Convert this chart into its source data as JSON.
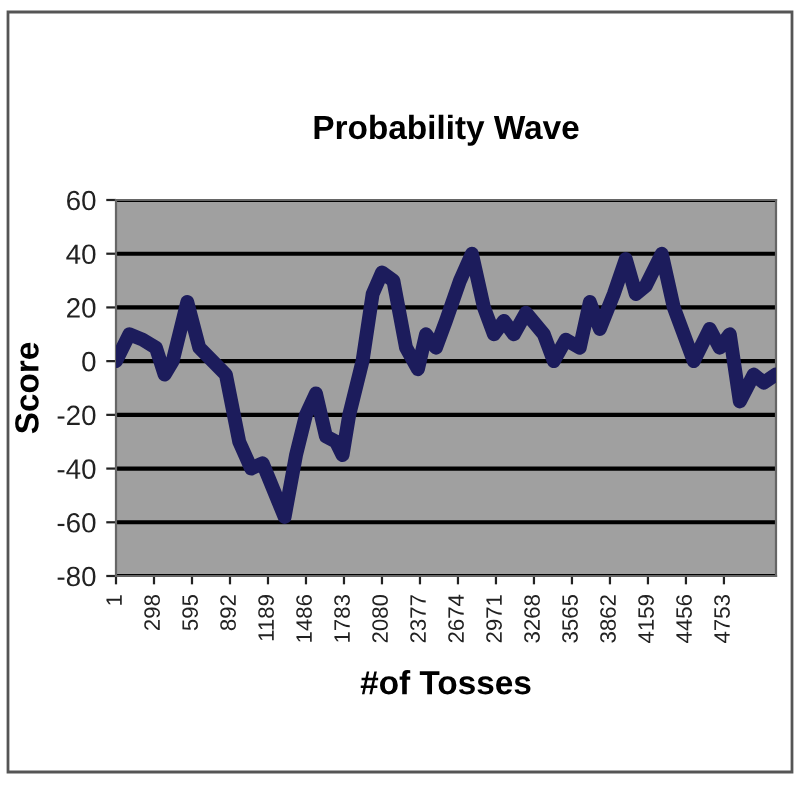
{
  "chart_data": {
    "type": "line",
    "title": "Probability Wave",
    "xlabel": "#of Tosses",
    "ylabel": "Score",
    "x": [
      1,
      105,
      209,
      313,
      381,
      444,
      558,
      652,
      756,
      860,
      964,
      1058,
      1147,
      1319,
      1408,
      1486,
      1564,
      1642,
      1720,
      1772,
      1824,
      1928,
      2007,
      2080,
      2169,
      2268,
      2361,
      2424,
      2502,
      2580,
      2690,
      2783,
      2877,
      2955,
      3033,
      3111,
      3205,
      3345,
      3423,
      3517,
      3626,
      3705,
      3783,
      3892,
      3986,
      4064,
      4142,
      4267,
      4361,
      4517,
      4642,
      4720,
      4799,
      4877,
      4986,
      5064,
      5158
    ],
    "series": [
      {
        "color": "#1c1c5c",
        "values": [
          0,
          10,
          8,
          5,
          -5,
          0,
          22,
          5,
          0,
          -5,
          -30,
          -40,
          -38,
          -58,
          -35,
          -20,
          -12,
          -28,
          -30,
          -35,
          -20,
          0,
          25,
          33,
          30,
          5,
          -3,
          10,
          5,
          15,
          30,
          40,
          20,
          10,
          15,
          10,
          18,
          10,
          0,
          8,
          5,
          22,
          12,
          25,
          38,
          25,
          28,
          40,
          20,
          0,
          12,
          5,
          10,
          -15,
          -5,
          -8,
          -5
        ]
      }
    ],
    "xlim": [
      1,
      5160
    ],
    "xticks": [
      1,
      298,
      595,
      892,
      1189,
      1486,
      1783,
      2080,
      2377,
      2674,
      2971,
      3268,
      3565,
      3862,
      4159,
      4456,
      4753
    ],
    "ylim": [
      -80,
      60
    ],
    "yticks": [
      -80,
      -60,
      -40,
      -20,
      0,
      20,
      40,
      60
    ],
    "grid": "y",
    "legend": false,
    "marker": "none",
    "line_style": "solid"
  }
}
